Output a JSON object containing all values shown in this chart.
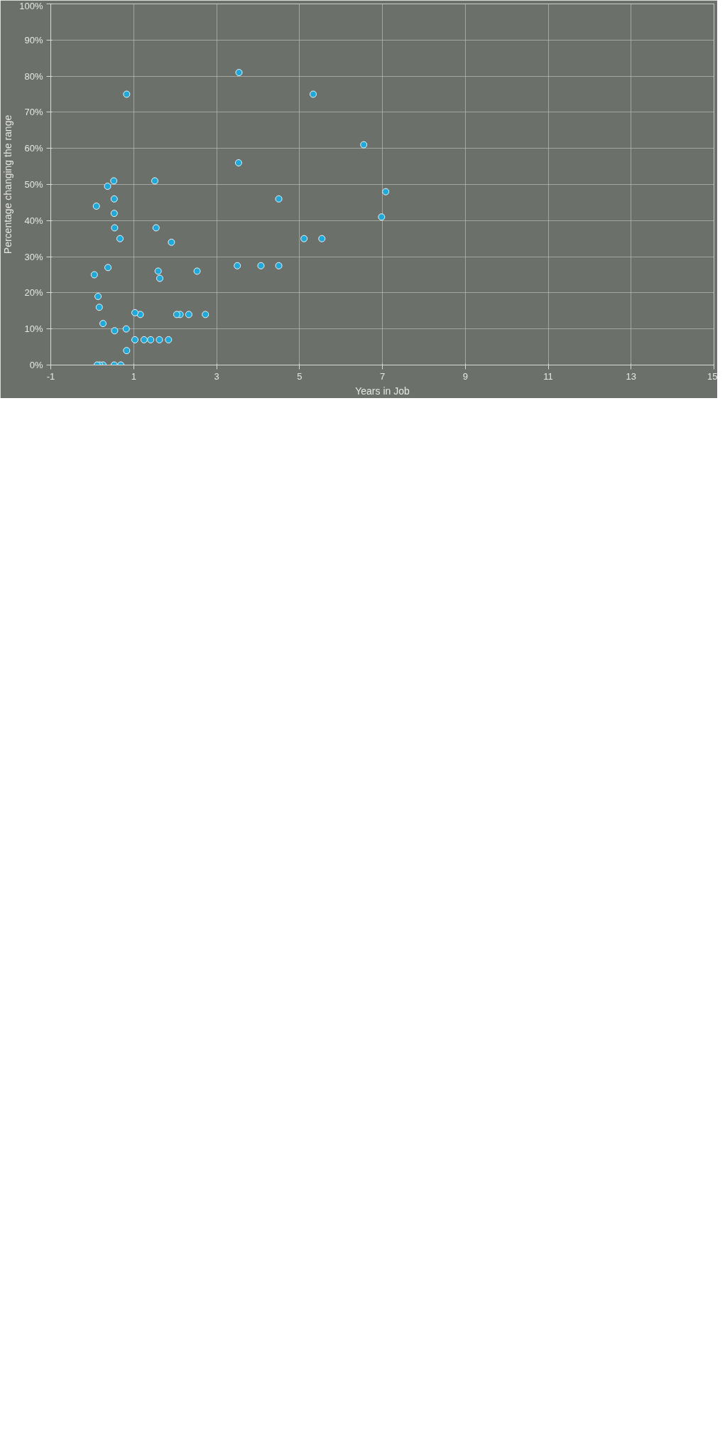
{
  "chart_data": {
    "type": "scatter",
    "xlabel": "Years in Job",
    "ylabel": "Percentage changing the range",
    "xlim": [
      -1,
      15
    ],
    "ylim": [
      0,
      100
    ],
    "xticks": [
      -1,
      1,
      3,
      5,
      7,
      9,
      11,
      13,
      15
    ],
    "yticks": [
      {
        "value": 0,
        "label": "0%"
      },
      {
        "value": 10,
        "label": "10%"
      },
      {
        "value": 20,
        "label": "20%"
      },
      {
        "value": 30,
        "label": "30%"
      },
      {
        "value": 40,
        "label": "40%"
      },
      {
        "value": 50,
        "label": "50%"
      },
      {
        "value": 60,
        "label": "60%"
      },
      {
        "value": 70,
        "label": "70%"
      },
      {
        "value": 80,
        "label": "80%"
      },
      {
        "value": 90,
        "label": "90%"
      },
      {
        "value": 100,
        "label": "100%"
      }
    ],
    "grid": true,
    "marker": "circle",
    "series": [
      {
        "color": "#1fa8d8",
        "x": [
          7.08,
          6.98,
          6.55,
          5.33,
          5.54,
          5.11,
          4.5,
          4.5,
          4.07,
          3.54,
          3.53,
          3.5,
          2.73,
          2.53,
          2.33,
          2.12,
          2.04,
          1.91,
          1.84,
          1.51,
          1.54,
          1.59,
          1.63,
          1.62,
          1.41,
          1.25,
          1.16,
          1.03,
          1.03,
          0.83,
          0.82,
          0.83,
          0.67,
          0.52,
          0.53,
          0.53,
          0.54,
          0.37,
          0.38,
          0.54,
          0.26,
          0.1,
          0.05,
          0.14,
          0.17,
          0.69,
          0.53,
          0.26,
          0.18,
          0.12
        ],
        "values": [
          48,
          41,
          61,
          75,
          35,
          35,
          46,
          27.5,
          27.5,
          81,
          56,
          27.5,
          14,
          26,
          14,
          14,
          14,
          34,
          7,
          51,
          38,
          26,
          24,
          7,
          7,
          7,
          14,
          14.5,
          7,
          75,
          10,
          4,
          35,
          51,
          46,
          42,
          38,
          49.5,
          27,
          9.5,
          11.5,
          44,
          25,
          19,
          16,
          0,
          0,
          0,
          0,
          0
        ]
      }
    ]
  }
}
